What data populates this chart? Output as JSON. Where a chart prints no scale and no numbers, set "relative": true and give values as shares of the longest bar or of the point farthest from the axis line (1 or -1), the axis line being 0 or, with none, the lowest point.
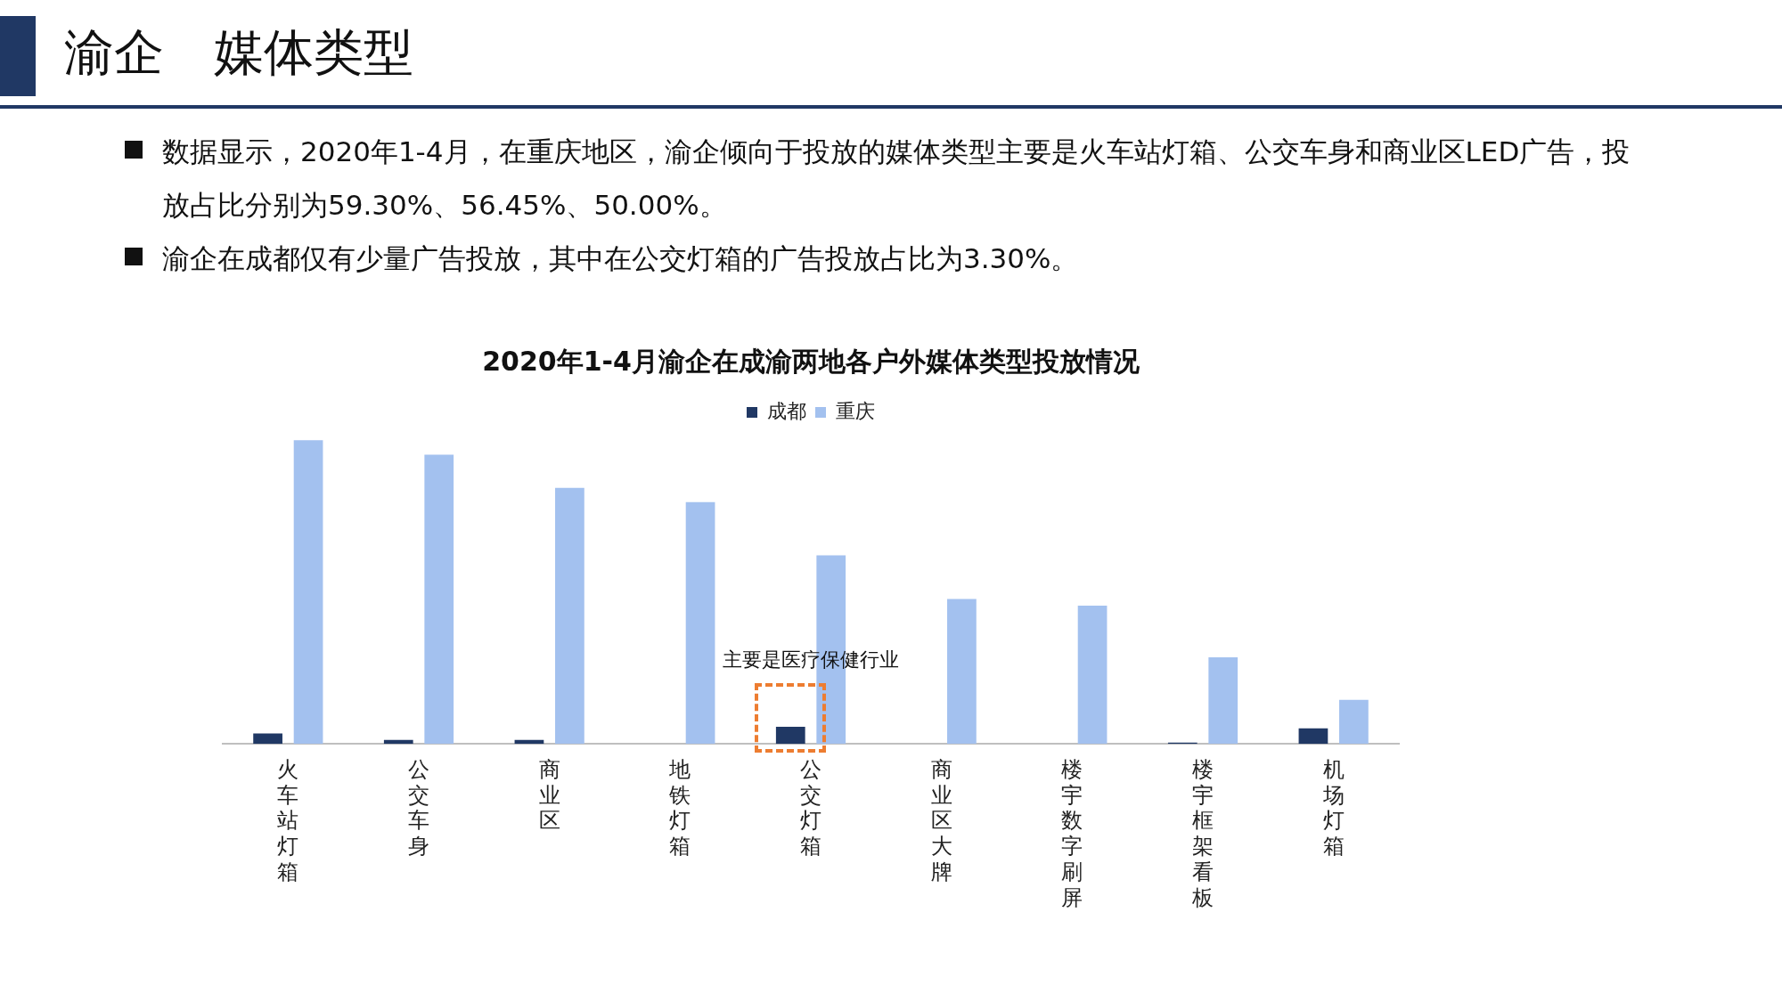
{
  "chart_data": {
    "type": "bar",
    "title": "渝企　媒体类型",
    "subtitle": "2020年1-4月渝企在成渝两地各户外媒体类型投放情况",
    "categories": [
      "火车站灯箱",
      "公交车身",
      "商业区",
      "地铁灯箱",
      "公交灯箱",
      "商业区大牌",
      "楼宇数字刷屏",
      "楼宇框架看板",
      "机场灯箱"
    ],
    "relative": true,
    "legend": "top",
    "grid": false,
    "series": [
      {
        "name": "成都",
        "color": "#203864",
        "values": [
          0.034,
          0.013,
          0.013,
          0,
          0.056,
          0,
          0,
          0.004,
          0.051
        ]
      },
      {
        "name": "重庆",
        "color": "#a3c1ef",
        "values": [
          1,
          0.952,
          0.843,
          0.796,
          0.621,
          0.477,
          0.455,
          0.285,
          0.145
        ]
      }
    ],
    "annotations": [
      "数据显示，2020年1-4月，在重庆地区，渝企倾向于投放的媒体类型主要是火车站灯箱、公交车身和商业区LED广告，投放占比分别为59.30%、56.45%、50.00%。",
      "渝企在成都仅有少量广告投放，其中在公交灯箱的广告投放占比为3.30%。",
      "主要是医疗保健行业"
    ]
  }
}
